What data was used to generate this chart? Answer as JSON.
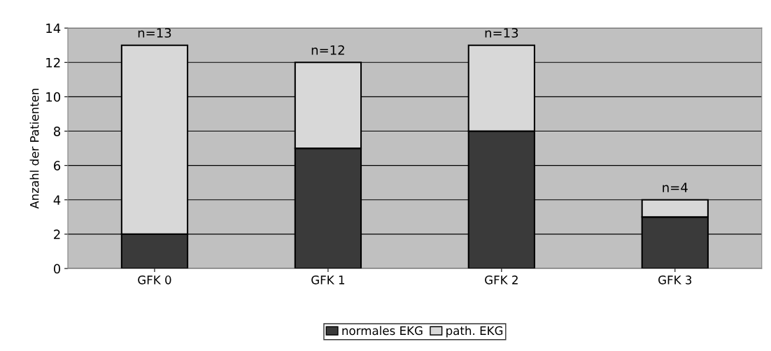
{
  "chart_data": {
    "type": "bar",
    "stacked": true,
    "ylabel": "Anzahl der Patienten",
    "categories": [
      "GFK 0",
      "GFK 1",
      "GFK 2",
      "GFK 3"
    ],
    "series": [
      {
        "name": "normales EKG",
        "color": "#3a3a3a",
        "values": [
          2,
          7,
          8,
          3
        ]
      },
      {
        "name": "path. EKG",
        "color": "#d8d8d8",
        "values": [
          11,
          5,
          5,
          1
        ]
      }
    ],
    "totals": [
      "n=13",
      "n=12",
      "n=13",
      "n=4"
    ],
    "ylim": [
      0,
      14
    ],
    "yticks": [
      0,
      2,
      4,
      6,
      8,
      10,
      12,
      14
    ],
    "grid": "y",
    "legend": "bottom"
  }
}
